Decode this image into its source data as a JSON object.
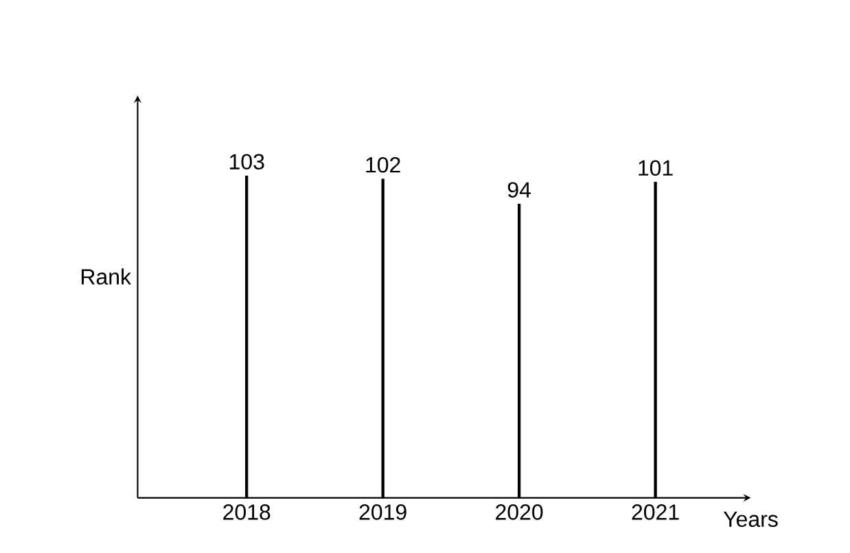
{
  "chart_data": {
    "type": "bar",
    "xlabel": "Years",
    "ylabel": "Rank",
    "categories": [
      "2018",
      "2019",
      "2020",
      "2021"
    ],
    "values": [
      103,
      102,
      94,
      101
    ],
    "color": "#000000",
    "data_labels": true
  }
}
